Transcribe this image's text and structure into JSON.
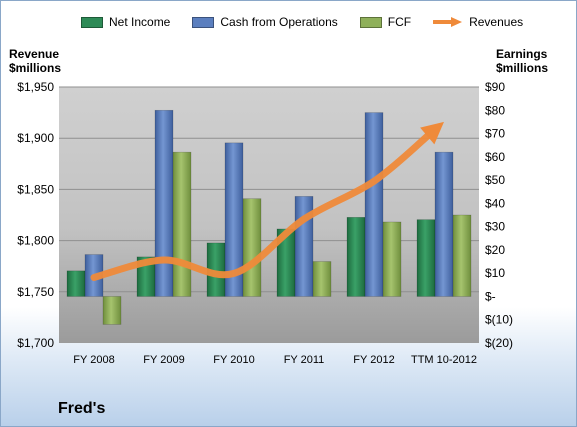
{
  "chart_data": {
    "type": "bar",
    "title": "Fred's",
    "categories": [
      "FY 2008",
      "FY 2009",
      "FY 2010",
      "FY 2011",
      "FY 2012",
      "TTM 10-2012"
    ],
    "series": [
      {
        "name": "Net Income",
        "axis": "right",
        "values": [
          11,
          17,
          23,
          29,
          34,
          33
        ],
        "color": "#2e8b57"
      },
      {
        "name": "Cash from Operations",
        "axis": "right",
        "values": [
          18,
          80,
          66,
          43,
          79,
          62
        ],
        "color": "#5b7fbf"
      },
      {
        "name": "FCF",
        "axis": "right",
        "values": [
          -12,
          62,
          42,
          15,
          32,
          35
        ],
        "color": "#8fb05a"
      },
      {
        "name": "Revenues",
        "axis": "left",
        "type": "line",
        "values": [
          1764,
          1781,
          1768,
          1821,
          1858,
          1916
        ],
        "color": "#ef8a3a"
      }
    ],
    "ylabel_left": "Revenue $millions",
    "ylabel_right": "Earnings $millions",
    "ylim_left": [
      1700,
      1950
    ],
    "ylim_right": [
      -20,
      90
    ],
    "left_ticks": [
      "$1,700",
      "$1,750",
      "$1,800",
      "$1,850",
      "$1,900",
      "$1,950"
    ],
    "right_ticks": [
      "$(20)",
      "$(10)",
      "$-",
      "$10",
      "$20",
      "$30",
      "$40",
      "$50",
      "$60",
      "$70",
      "$80",
      "$90"
    ],
    "legend_position": "top"
  },
  "legend": {
    "net_income": "Net Income",
    "cfo": "Cash from Operations",
    "fcf": "FCF",
    "revenues": "Revenues"
  },
  "axis_titles": {
    "left_line1": "Revenue",
    "left_line2": "$millions",
    "right_line1": "Earnings",
    "right_line2": "$millions"
  },
  "company": "Fred's"
}
